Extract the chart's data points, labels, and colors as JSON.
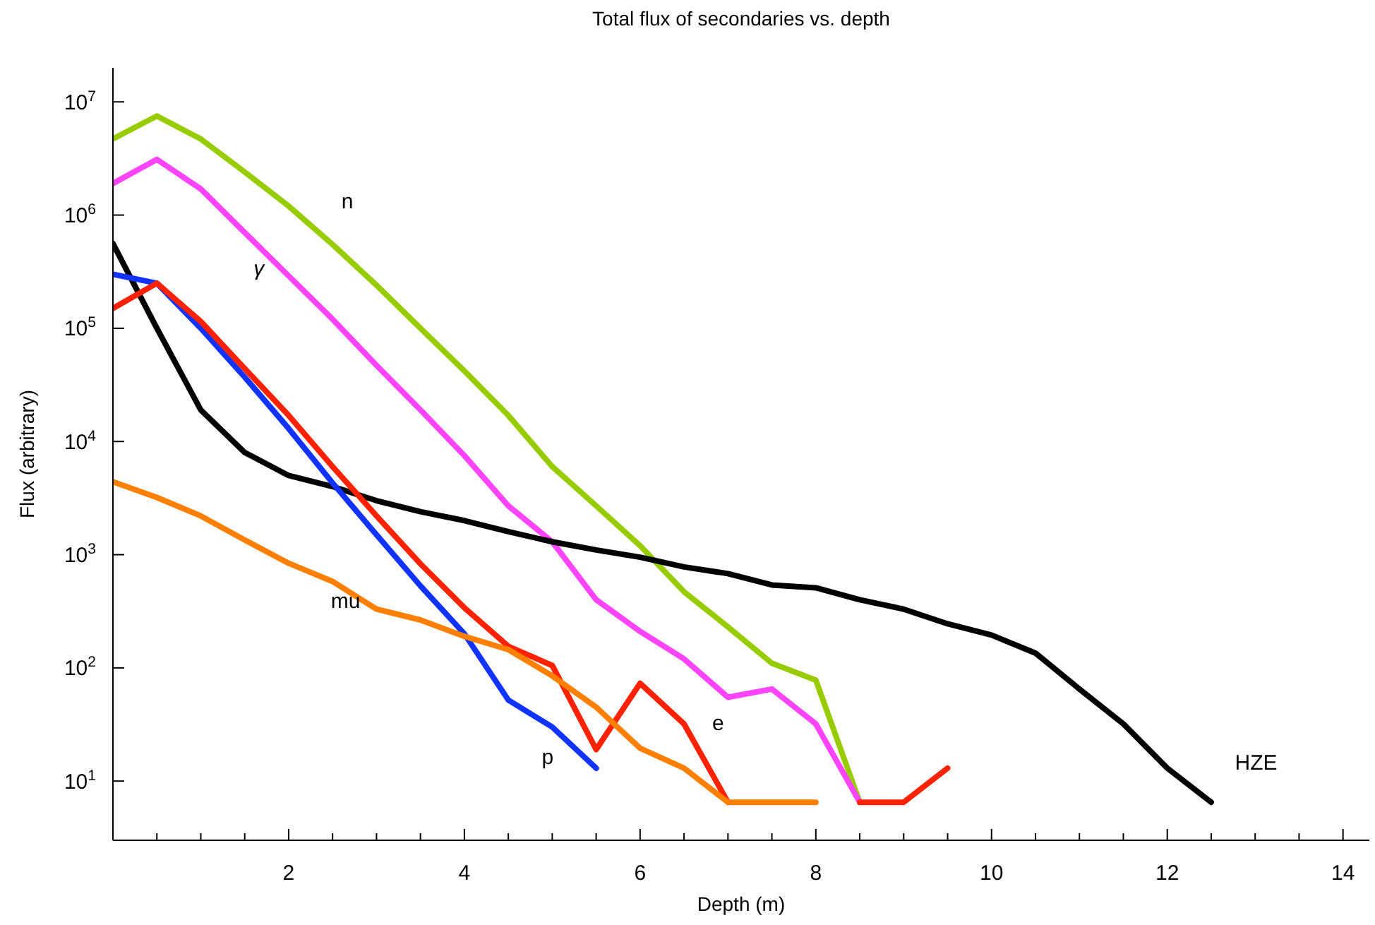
{
  "chart_data": {
    "type": "line",
    "title": "Total flux of secondaries vs. depth",
    "xlabel": "Depth (m)",
    "ylabel": "Flux (arbitrary)",
    "log": "y",
    "grid": false,
    "marker": "none",
    "line_style": "solid",
    "x": [
      0,
      0.5,
      1,
      1.5,
      2,
      2.5,
      3,
      3.5,
      4,
      4.5,
      5,
      5.5,
      6,
      6.5,
      7,
      7.5,
      8,
      8.5,
      9,
      9.5,
      10,
      10.5,
      11,
      11.5,
      12,
      12.5
    ],
    "xlim": [
      0,
      14.3
    ],
    "ylim": [
      3,
      20000000
    ],
    "xticks": [
      {
        "value": 0.5,
        "label": null
      },
      {
        "value": 1,
        "label": null
      },
      {
        "value": 1.5,
        "label": null
      },
      2,
      {
        "value": 2.5,
        "label": null
      },
      {
        "value": 3,
        "label": null
      },
      {
        "value": 3.5,
        "label": null
      },
      4,
      {
        "value": 4.5,
        "label": null
      },
      {
        "value": 5,
        "label": null
      },
      {
        "value": 5.5,
        "label": null
      },
      6,
      {
        "value": 6.5,
        "label": null
      },
      {
        "value": 7,
        "label": null
      },
      {
        "value": 7.5,
        "label": null
      },
      8,
      {
        "value": 8.5,
        "label": null
      },
      {
        "value": 9,
        "label": null
      },
      {
        "value": 9.5,
        "label": null
      },
      10,
      {
        "value": 10.5,
        "label": null
      },
      {
        "value": 11,
        "label": null
      },
      {
        "value": 11.5,
        "label": null
      },
      12,
      {
        "value": 12.5,
        "label": null
      },
      {
        "value": 13,
        "label": null
      },
      {
        "value": 13.5,
        "label": null
      },
      14
    ],
    "yticks": [
      {
        "value": 10,
        "label": "10$^{1}$"
      },
      {
        "value": 100,
        "label": "10$^{2}$"
      },
      {
        "value": 1000,
        "label": "10$^{3}$"
      },
      {
        "value": 10000,
        "label": "10$^{4}$"
      },
      {
        "value": 100000,
        "label": "10$^{5}$"
      },
      {
        "value": 1000000,
        "label": "10$^{6}$"
      },
      {
        "value": 10000000,
        "label": "10$^{7}$"
      }
    ],
    "series": [
      {
        "name": "n",
        "color": "#99cc00",
        "values": [
          4700000,
          7500000,
          4700000,
          2400000,
          1200000,
          550000,
          240000,
          100000,
          42000,
          17000,
          6000,
          2700,
          1200,
          470,
          230,
          110,
          78,
          6.5,
          null,
          null,
          null,
          null,
          null,
          null,
          null,
          null
        ]
      },
      {
        "name": "γ",
        "color": "#ff44ff",
        "values": [
          1900000,
          3100000,
          1700000,
          700000,
          290000,
          120000,
          47000,
          19000,
          7500,
          2700,
          1300,
          400,
          210,
          120,
          55,
          65,
          32,
          6.5,
          null,
          null,
          null,
          null,
          null,
          null,
          null,
          null
        ]
      },
      {
        "name": "HZE",
        "color": "#000000",
        "values": [
          560000,
          100000,
          19000,
          8000,
          5000,
          4000,
          3000,
          2400,
          2000,
          1600,
          1300,
          1100,
          950,
          780,
          680,
          540,
          510,
          400,
          330,
          245,
          195,
          135,
          65,
          32,
          13,
          6.5
        ]
      },
      {
        "name": "p",
        "color": "#1133ff",
        "values": [
          300000,
          250000,
          100000,
          37000,
          13000,
          4300,
          1500,
          530,
          200,
          52,
          30,
          13,
          null,
          null,
          null,
          null,
          null,
          null,
          null,
          null,
          null,
          null,
          null,
          null,
          null,
          null
        ]
      },
      {
        "name": "e",
        "color": "#ff2200",
        "values": [
          150000,
          250000,
          115000,
          44000,
          17000,
          6000,
          2200,
          830,
          340,
          155,
          105,
          19,
          73,
          32,
          6.5,
          null,
          null,
          6.5,
          6.5,
          13,
          null,
          null,
          null,
          null,
          null,
          null
        ]
      },
      {
        "name": "mu",
        "color": "#ff7f00",
        "values": [
          4400,
          3200,
          2200,
          1350,
          840,
          580,
          330,
          265,
          190,
          145,
          85,
          45,
          19.5,
          13,
          6.5,
          6.5,
          6.5,
          null,
          null,
          null,
          null,
          null,
          null,
          null,
          null,
          null
        ]
      }
    ]
  }
}
